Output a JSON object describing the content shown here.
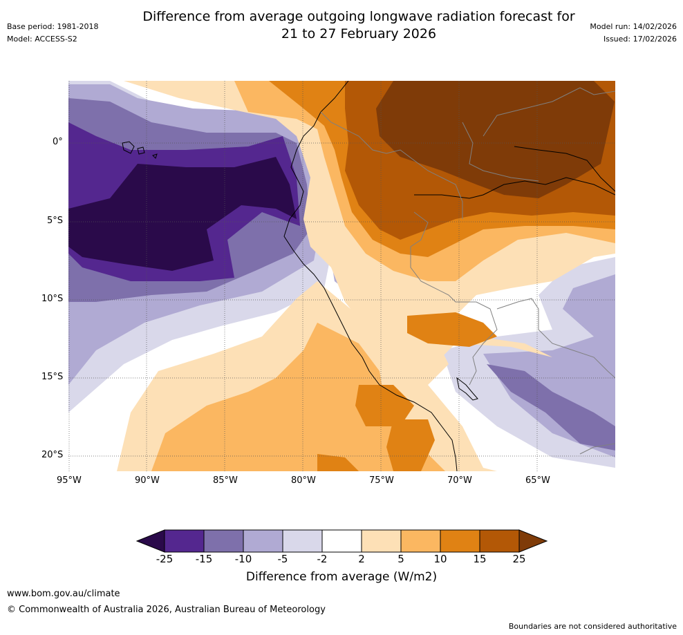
{
  "header": {
    "title_line1": "Difference from average outgoing longwave radiation forecast for",
    "title_line2": "21 to 27 February 2026",
    "base_period": "Base period: 1981-2018",
    "model": "Model: ACCESS-S2",
    "model_run": "Model run: 14/02/2026",
    "issued": "Issued: 17/02/2026"
  },
  "map": {
    "lat_labels": [
      "0°",
      "5°S",
      "10°S",
      "15°S",
      "20°S"
    ],
    "lon_labels": [
      "95°W",
      "90°W",
      "85°W",
      "80°W",
      "75°W",
      "70°W",
      "65°W"
    ]
  },
  "colorbar": {
    "label": "Difference from average (W/m2)",
    "ticks": [
      "-25",
      "-15",
      "-10",
      "-5",
      "-2",
      "2",
      "5",
      "10",
      "15",
      "25"
    ],
    "colors": {
      "lt_-25": "#2a0a4a",
      "-25_-15": "#54278f",
      "-15_-10": "#7e70ab",
      "-10_-5": "#b0aad3",
      "-5_-2": "#d9d8ea",
      "-2_2": "#ffffff",
      "2_5": "#fde0b6",
      "5_10": "#fbb761",
      "10_15": "#e08214",
      "15_25": "#b35806",
      "gt_25": "#7f3b08"
    }
  },
  "footer": {
    "url": "www.bom.gov.au/climate",
    "copyright": "© Commonwealth of Australia 2026, Australian Bureau of Meteorology",
    "disclaimer": "Boundaries are not considered authoritative"
  }
}
